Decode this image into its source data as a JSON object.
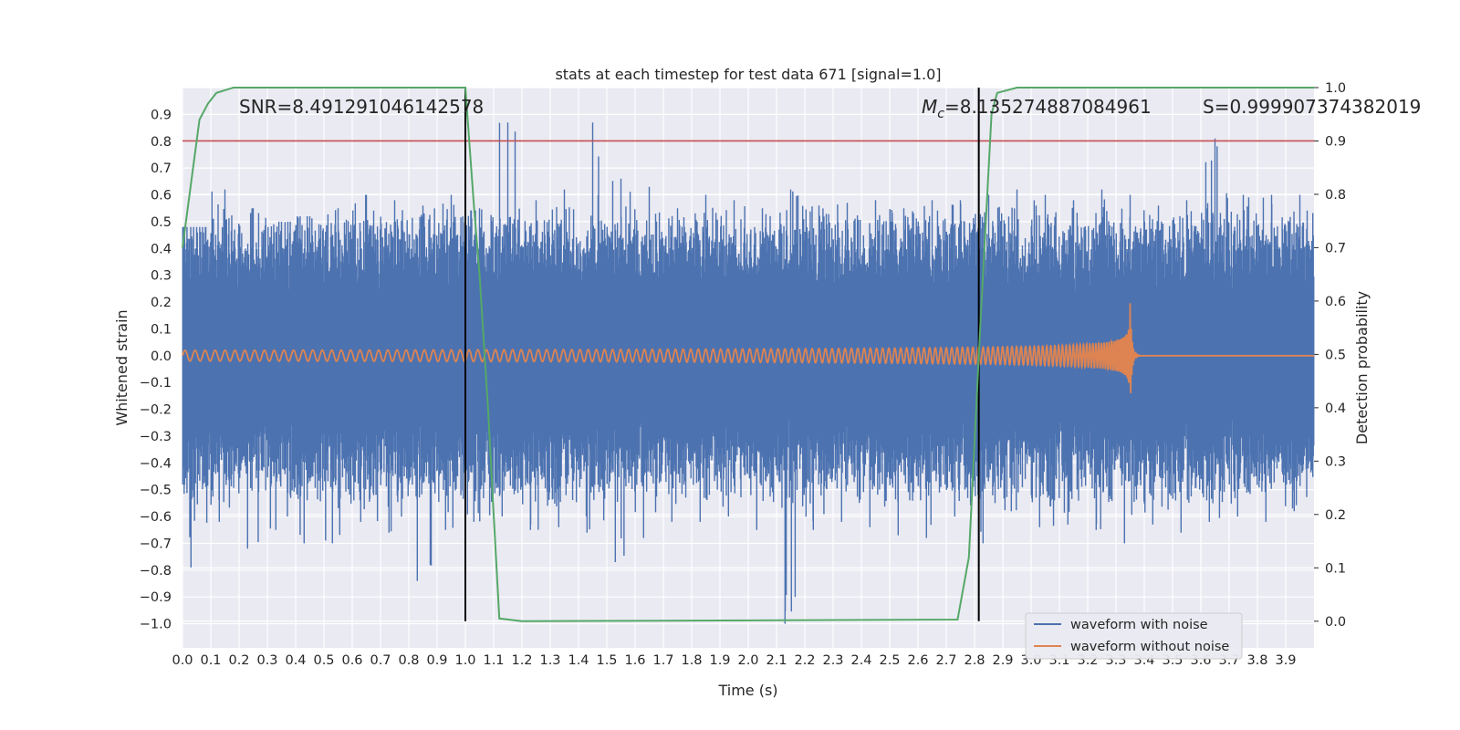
{
  "chart_data": {
    "type": "line",
    "title": "stats at each timestep for test data 671 [signal=1.0]",
    "xlabel": "Time (s)",
    "ylabel": "Whitened strain",
    "y2label": "Detection probability",
    "xlim": [
      0.0,
      4.0
    ],
    "ylim": [
      -1.09,
      1.0
    ],
    "y2lim": [
      -0.05,
      1.0
    ],
    "grid": true,
    "xticks": [
      "0.0",
      "0.1",
      "0.2",
      "0.3",
      "0.4",
      "0.5",
      "0.6",
      "0.7",
      "0.8",
      "0.9",
      "1.0",
      "1.1",
      "1.2",
      "1.3",
      "1.4",
      "1.5",
      "1.6",
      "1.7",
      "1.8",
      "1.9",
      "2.0",
      "2.1",
      "2.2",
      "2.3",
      "2.4",
      "2.5",
      "2.6",
      "2.7",
      "2.8",
      "2.9",
      "3.0",
      "3.1",
      "3.2",
      "3.3",
      "3.4",
      "3.5",
      "3.6",
      "3.7",
      "3.8",
      "3.9"
    ],
    "yticks": [
      "0.9",
      "0.8",
      "0.7",
      "0.6",
      "0.5",
      "0.4",
      "0.3",
      "0.2",
      "0.1",
      "0.0",
      "−0.1",
      "−0.2",
      "−0.3",
      "−0.4",
      "−0.5",
      "−0.6",
      "−0.7",
      "−0.8",
      "−0.9",
      "−1.0"
    ],
    "y2ticks": [
      "1.0",
      "0.9",
      "0.8",
      "0.7",
      "0.6",
      "0.5",
      "0.4",
      "0.3",
      "0.2",
      "0.1",
      "0.0"
    ],
    "annotations": {
      "snr": "SNR=8.491291046142578",
      "mc_symbol": "M",
      "mc_sub": "c",
      "mc_value": "=8.135274887084961",
      "s": "S=0.999907374382019"
    },
    "legend": {
      "position": "lower-right",
      "entries": [
        "waveform with noise",
        "waveform without noise"
      ]
    },
    "series": [
      {
        "name": "waveform with noise",
        "color": "#4c72b0",
        "note_type": "dense noise, envelope approx",
        "envelope_upper": [
          0.48,
          0.62,
          0.55,
          0.5,
          0.52,
          0.55,
          0.6,
          0.58,
          0.56,
          0.6,
          0.55,
          0.87,
          0.58,
          0.62,
          0.87,
          0.66,
          0.63,
          0.55,
          0.6,
          0.58,
          0.55,
          0.62,
          0.56,
          0.57,
          0.58,
          0.55,
          0.58,
          0.58,
          0.6,
          0.62,
          0.6,
          0.58,
          0.62,
          0.6,
          0.56,
          0.58,
          0.81,
          0.6,
          0.6,
          0.6
        ],
        "envelope_lower": [
          -0.79,
          -0.62,
          -0.72,
          -0.65,
          -0.7,
          -0.7,
          -0.62,
          -0.66,
          -0.84,
          -0.65,
          -0.62,
          -0.6,
          -0.65,
          -0.64,
          -0.66,
          -0.77,
          -0.68,
          -0.62,
          -0.62,
          -0.6,
          -0.65,
          -1.0,
          -0.65,
          -0.62,
          -0.64,
          -0.67,
          -0.68,
          -0.6,
          -0.7,
          -0.58,
          -0.64,
          -0.63,
          -0.65,
          -0.7,
          -0.63,
          -0.66,
          -0.62,
          -0.6,
          -0.62,
          -0.58
        ]
      },
      {
        "name": "waveform without noise",
        "color": "#dd8452",
        "merger_time": 3.35,
        "amplitude_start": 0.02,
        "amplitude_peak": 0.28,
        "trough_peak": -0.2
      },
      {
        "axis": "right",
        "color": "#55a868",
        "x": [
          0.0,
          0.03,
          0.06,
          0.09,
          0.12,
          0.18,
          0.25,
          1.0,
          1.03,
          1.05,
          1.08,
          1.1,
          1.12,
          1.2,
          1.7,
          2.74,
          2.78,
          2.82,
          2.86,
          2.88,
          2.95,
          3.5,
          4.0
        ],
        "values": [
          0.7,
          0.82,
          0.94,
          0.97,
          0.99,
          1.0,
          1.0,
          1.0,
          0.78,
          0.65,
          0.4,
          0.2,
          0.005,
          0.0,
          0.001,
          0.003,
          0.12,
          0.55,
          0.95,
          0.99,
          1.0,
          1.0,
          1.0
        ]
      }
    ],
    "hlines": [
      {
        "axis": "right",
        "value": 0.9,
        "color": "#c44e52"
      }
    ],
    "vlines": [
      {
        "x": 1.0,
        "color": "#000000"
      },
      {
        "x": 2.815,
        "color": "#000000"
      }
    ]
  }
}
